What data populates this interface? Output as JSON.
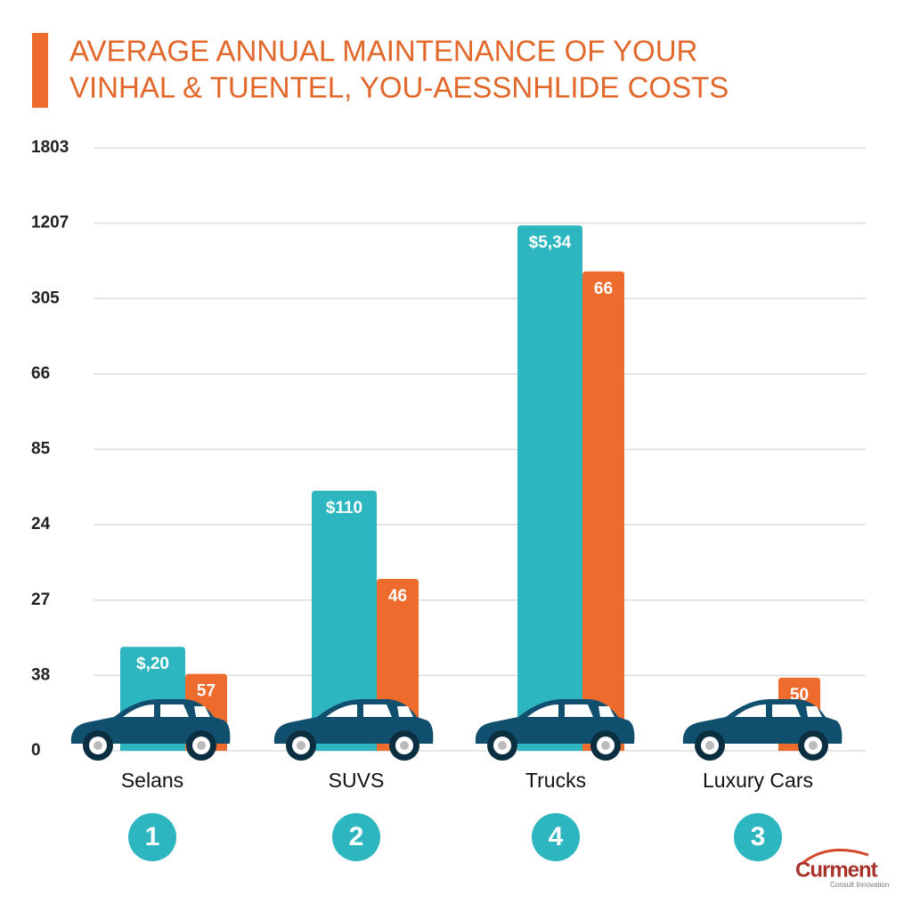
{
  "chart_data": {
    "type": "bar",
    "title": [
      "AVERAGE ANNUAL MAINTENANCE OF YOUR",
      "VINHAL & TUENTEL, YOU-AESSNHLIDE COSTS"
    ],
    "categories": [
      "Selans",
      "SUVS",
      "Trucks",
      "Luxury Cars"
    ],
    "badges": [
      "1",
      "2",
      "4",
      "3"
    ],
    "series": [
      {
        "color": "#2db6c0",
        "values": [
          1.38,
          3.45,
          6.97,
          null
        ],
        "value_labels": [
          "$,20",
          "$110",
          "$5,34",
          null
        ]
      },
      {
        "color": "#ec6b2d",
        "values": [
          1.02,
          2.28,
          6.36,
          0.97
        ],
        "value_labels": [
          "57",
          "46",
          "66",
          "50"
        ]
      }
    ],
    "ylim": [
      0,
      8
    ],
    "yticks": [
      {
        "value": 0,
        "label": "0"
      },
      {
        "value": 1,
        "label": "38"
      },
      {
        "value": 2,
        "label": "27"
      },
      {
        "value": 3,
        "label": "24"
      },
      {
        "value": 4,
        "label": "85"
      },
      {
        "value": 5,
        "label": "66"
      },
      {
        "value": 6,
        "label": "305"
      },
      {
        "value": 7,
        "label": "1207"
      },
      {
        "value": 8,
        "label": "1803"
      }
    ],
    "grid": true,
    "logo": {
      "name": "Curment",
      "tagline": "Consult Innovation"
    }
  }
}
